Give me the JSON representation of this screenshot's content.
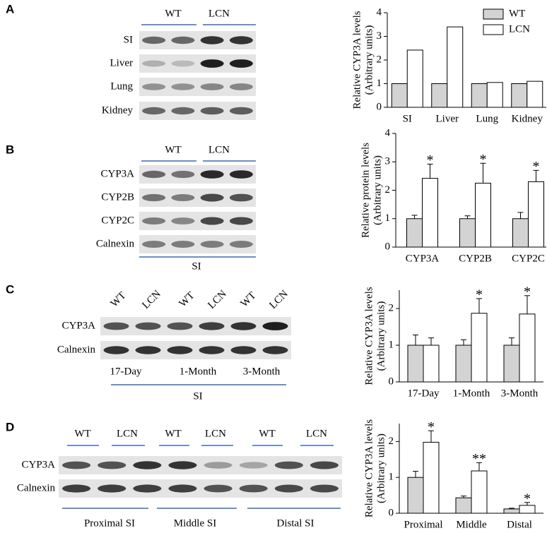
{
  "chart_data": [
    {
      "type": "bar",
      "ylabel": [
        "Relative CYP3A levels",
        "(Arbitrary units)"
      ],
      "categories": [
        "SI",
        "Liver",
        "Lung",
        "Kidney"
      ],
      "series": [
        {
          "name": "WT",
          "color": "#d3d3d3",
          "values": [
            1,
            1,
            1,
            1
          ]
        },
        {
          "name": "LCN",
          "color": "#ffffff",
          "values": [
            2.42,
            3.4,
            1.05,
            1.1
          ]
        }
      ],
      "ylim": [
        0,
        4
      ],
      "yticks": [
        0,
        1,
        2,
        3,
        4
      ],
      "legend": "upper right"
    },
    {
      "type": "bar",
      "ylabel": [
        "Relative protein levels",
        "(Arbitrary units)"
      ],
      "categories": [
        "CYP3A",
        "CYP2B",
        "CYP2C"
      ],
      "series": [
        {
          "name": "WT",
          "color": "#d3d3d3",
          "values": [
            1,
            1,
            1
          ],
          "errors": [
            0.12,
            0.1,
            0.22
          ]
        },
        {
          "name": "LCN",
          "color": "#ffffff",
          "values": [
            2.42,
            2.25,
            2.3
          ],
          "errors": [
            0.5,
            0.7,
            0.4
          ]
        }
      ],
      "annotations": [
        "*",
        "*",
        "*"
      ],
      "ylim": [
        0,
        4
      ],
      "yticks": [
        0,
        1,
        2,
        3,
        4
      ]
    },
    {
      "type": "bar",
      "ylabel": [
        "Relative CYP3A levels",
        "(Arbitrary units)"
      ],
      "categories": [
        "17-Day",
        "1-Month",
        "3-Month"
      ],
      "series": [
        {
          "name": "WT",
          "color": "#d3d3d3",
          "values": [
            1,
            1,
            1
          ],
          "errors": [
            0.28,
            0.15,
            0.2
          ]
        },
        {
          "name": "LCN",
          "color": "#ffffff",
          "values": [
            1,
            1.87,
            1.85
          ],
          "errors": [
            0.2,
            0.4,
            0.5
          ]
        }
      ],
      "annotations": [
        null,
        "*",
        "*"
      ],
      "ylim": [
        0,
        2.5
      ],
      "yticks": [
        0,
        1,
        2
      ]
    },
    {
      "type": "bar",
      "ylabel": [
        "Relative CYP3A levels",
        "(Arbitrary units)"
      ],
      "categories": [
        "Proximal",
        "Middle",
        "Distal"
      ],
      "series": [
        {
          "name": "WT",
          "color": "#d3d3d3",
          "values": [
            1,
            0.43,
            0.12
          ],
          "errors": [
            0.17,
            0.05,
            0.02
          ]
        },
        {
          "name": "LCN",
          "color": "#ffffff",
          "values": [
            1.98,
            1.18,
            0.22
          ],
          "errors": [
            0.32,
            0.23,
            0.08
          ]
        }
      ],
      "annotations": [
        "*",
        "**",
        "*"
      ],
      "ylim": [
        0,
        2.5
      ],
      "yticks": [
        0,
        1,
        2
      ]
    }
  ],
  "blots": [
    {
      "letter": "A",
      "groups": [
        "WT",
        "LCN"
      ],
      "rows": [
        "SI",
        "Liver",
        "Lung",
        "Kidney"
      ]
    },
    {
      "letter": "B",
      "groups": [
        "WT",
        "LCN"
      ],
      "rows": [
        "CYP3A",
        "CYP2B",
        "CYP2C",
        "Calnexin"
      ],
      "footer": [
        "SI"
      ]
    },
    {
      "letter": "C",
      "groups": [
        "WT",
        "LCN",
        "WT",
        "LCN",
        "WT",
        "LCN"
      ],
      "rows": [
        "CYP3A",
        "Calnexin"
      ],
      "sublabels": [
        "17-Day",
        "1-Month",
        "3-Month"
      ],
      "footer": [
        "SI"
      ]
    },
    {
      "letter": "D",
      "groups": [
        "WT",
        "LCN",
        "WT",
        "LCN",
        "WT",
        "LCN"
      ],
      "rows": [
        "CYP3A",
        "Calnexin"
      ],
      "footer": [
        "Proximal SI",
        "Middle SI",
        "Distal SI"
      ]
    }
  ]
}
